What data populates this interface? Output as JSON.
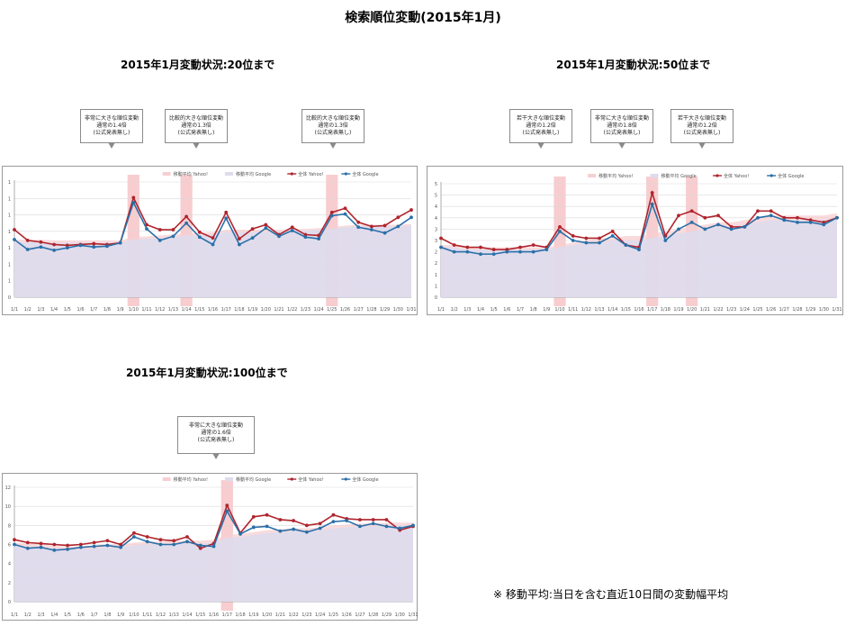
{
  "page": {
    "title": "検索順位変動(2015年1月)",
    "note": "※ 移動平均:当日を含む直近10日間の変動幅平均"
  },
  "legend": [
    "移動平均 Yahoo!",
    "移動平均 Google",
    "全体 Yahoo!",
    "全体 Google"
  ],
  "colors": {
    "yahoo": "#b0242c",
    "google": "#2a6fa8",
    "avg_yahoo": "#f7cfd2",
    "avg_google": "#dcdcee",
    "highlight": "#f6bcc0"
  },
  "chart_data": [
    {
      "type": "line",
      "title": "2015年1月変動状況:20位まで",
      "x": [
        "1/1",
        "1/2",
        "1/3",
        "1/4",
        "1/5",
        "1/6",
        "1/7",
        "1/8",
        "1/9",
        "1/10",
        "1/11",
        "1/12",
        "1/13",
        "1/14",
        "1/15",
        "1/16",
        "1/17",
        "1/18",
        "1/19",
        "1/20",
        "1/21",
        "1/22",
        "1/23",
        "1/24",
        "1/25",
        "1/26",
        "1/27",
        "1/28",
        "1/29",
        "1/30",
        "1/31"
      ],
      "ytick_labels": [
        "0",
        "1",
        "1",
        "1",
        "1",
        "1",
        "1",
        "1"
      ],
      "ylim": [
        0,
        14
      ],
      "highlight": [
        "1/10",
        "1/14",
        "1/25"
      ],
      "callouts": [
        {
          "lines": [
            "非常に大きな順位変動",
            "通常の1.4倍",
            "(公式発表無し)"
          ],
          "x": "1/10"
        },
        {
          "lines": [
            "比較的大きな順位変動",
            "通常の1.3倍",
            "(公式発表無し)"
          ],
          "x": "1/14"
        },
        {
          "lines": [
            "比較的大きな順位変動",
            "通常の1.3倍",
            "(公式発表無し)"
          ],
          "x": "1/25"
        }
      ],
      "series": [
        {
          "name": "移動平均 Yahoo!",
          "values": [
            7.0,
            7.0,
            7.0,
            6.9,
            6.9,
            6.9,
            6.9,
            6.9,
            6.9,
            7.3,
            7.4,
            7.5,
            7.6,
            7.8,
            7.8,
            7.9,
            8.2,
            8.2,
            8.2,
            8.2,
            8.2,
            8.3,
            8.3,
            8.4,
            8.5,
            8.7,
            8.8,
            8.8,
            8.8,
            8.8,
            8.9
          ]
        },
        {
          "name": "移動平均 Google",
          "values": [
            6.7,
            6.7,
            6.7,
            6.6,
            6.6,
            6.6,
            6.6,
            6.6,
            6.6,
            7.0,
            7.1,
            7.2,
            7.3,
            7.5,
            7.5,
            7.6,
            7.9,
            7.9,
            7.9,
            7.9,
            8.0,
            8.1,
            8.1,
            8.2,
            8.3,
            8.5,
            8.6,
            8.6,
            8.6,
            8.6,
            8.7
          ]
        },
        {
          "name": "全体 Yahoo!",
          "values": [
            8.2,
            6.9,
            6.7,
            6.4,
            6.3,
            6.4,
            6.5,
            6.4,
            6.6,
            12.1,
            8.8,
            8.2,
            8.2,
            9.8,
            7.9,
            7.2,
            10.3,
            7.1,
            8.3,
            8.8,
            7.6,
            8.5,
            7.6,
            7.5,
            10.3,
            10.8,
            9.1,
            8.6,
            8.7,
            9.7,
            10.6
          ]
        },
        {
          "name": "全体 Google",
          "values": [
            7.0,
            5.8,
            6.1,
            5.7,
            6.0,
            6.3,
            6.1,
            6.2,
            6.6,
            11.5,
            8.3,
            6.9,
            7.4,
            9.0,
            7.3,
            6.4,
            9.6,
            6.4,
            7.2,
            8.4,
            7.4,
            8.1,
            7.3,
            7.1,
            9.9,
            10.1,
            8.5,
            8.2,
            7.8,
            8.6,
            9.7
          ]
        }
      ]
    },
    {
      "type": "line",
      "title": "2015年1月変動状況:50位まで",
      "x": [
        "1/1",
        "1/2",
        "1/3",
        "1/4",
        "1/5",
        "1/6",
        "1/7",
        "1/8",
        "1/9",
        "1/10",
        "1/11",
        "1/12",
        "1/13",
        "1/14",
        "1/15",
        "1/16",
        "1/17",
        "1/18",
        "1/19",
        "1/20",
        "1/21",
        "1/22",
        "1/23",
        "1/24",
        "1/25",
        "1/26",
        "1/27",
        "1/28",
        "1/29",
        "1/30",
        "1/31"
      ],
      "ytick_labels": [
        "0",
        "1",
        "1",
        "2",
        "2",
        "3",
        "3",
        "4",
        "4",
        "5",
        "5"
      ],
      "ylim": [
        0,
        5
      ],
      "highlight": [
        "1/10",
        "1/17",
        "1/20"
      ],
      "callouts": [
        {
          "lines": [
            "若干大きな順位変動",
            "通常の1.2倍",
            "(公式発表無し)"
          ],
          "x": "1/10"
        },
        {
          "lines": [
            "非常に大きな順位変動",
            "通常の1.8倍",
            "(公式発表無し)"
          ],
          "x": "1/17"
        },
        {
          "lines": [
            "若干大きな順位変動",
            "通常の1.2倍",
            "(公式発表無し)"
          ],
          "x": "1/20"
        }
      ],
      "series": [
        {
          "name": "移動平均 Yahoo!",
          "values": [
            2.3,
            2.3,
            2.2,
            2.2,
            2.2,
            2.2,
            2.2,
            2.2,
            2.2,
            2.3,
            2.4,
            2.5,
            2.6,
            2.6,
            2.7,
            2.7,
            2.8,
            2.9,
            3.0,
            3.1,
            3.2,
            3.3,
            3.3,
            3.4,
            3.5,
            3.6,
            3.6,
            3.6,
            3.6,
            3.6,
            3.7
          ]
        },
        {
          "name": "移動平均 Google",
          "values": [
            2.2,
            2.2,
            2.1,
            2.1,
            2.1,
            2.1,
            2.1,
            2.1,
            2.1,
            2.2,
            2.3,
            2.4,
            2.4,
            2.5,
            2.5,
            2.5,
            2.6,
            2.7,
            2.8,
            2.9,
            3.0,
            3.1,
            3.1,
            3.2,
            3.3,
            3.4,
            3.4,
            3.4,
            3.4,
            3.4,
            3.5
          ]
        },
        {
          "name": "全体 Yahoo!",
          "values": [
            2.6,
            2.3,
            2.2,
            2.2,
            2.1,
            2.1,
            2.2,
            2.3,
            2.2,
            3.1,
            2.7,
            2.6,
            2.6,
            2.9,
            2.3,
            2.2,
            4.6,
            2.7,
            3.6,
            3.8,
            3.5,
            3.6,
            3.1,
            3.1,
            3.8,
            3.8,
            3.5,
            3.5,
            3.4,
            3.3,
            3.5
          ]
        },
        {
          "name": "全体 Google",
          "values": [
            2.2,
            2.0,
            2.0,
            1.9,
            1.9,
            2.0,
            2.0,
            2.0,
            2.1,
            2.9,
            2.5,
            2.4,
            2.4,
            2.7,
            2.3,
            2.1,
            4.1,
            2.5,
            3.0,
            3.3,
            3.0,
            3.2,
            3.0,
            3.1,
            3.5,
            3.6,
            3.4,
            3.3,
            3.3,
            3.2,
            3.5
          ]
        }
      ]
    },
    {
      "type": "line",
      "title": "2015年1月変動状況:100位まで",
      "x": [
        "1/1",
        "1/2",
        "1/3",
        "1/4",
        "1/5",
        "1/6",
        "1/7",
        "1/8",
        "1/9",
        "1/10",
        "1/11",
        "1/12",
        "1/13",
        "1/14",
        "1/15",
        "1/16",
        "1/17",
        "1/18",
        "1/19",
        "1/20",
        "1/21",
        "1/22",
        "1/23",
        "1/24",
        "1/25",
        "1/26",
        "1/27",
        "1/28",
        "1/29",
        "1/30",
        "1/31"
      ],
      "ytick_labels": [
        "0",
        "2",
        "4",
        "6",
        "8",
        "10",
        "12"
      ],
      "ylim": [
        0,
        12
      ],
      "highlight": [
        "1/17"
      ],
      "callouts": [
        {
          "lines": [
            "非常に大きな順位変動",
            "通常の1.6倍",
            "(公式発表無し)"
          ],
          "x": "1/17"
        }
      ],
      "series": [
        {
          "name": "移動平均 Yahoo!",
          "values": [
            6.2,
            6.1,
            6.0,
            5.9,
            5.8,
            5.8,
            5.9,
            6.0,
            6.0,
            6.2,
            6.3,
            6.3,
            6.4,
            6.4,
            6.4,
            6.5,
            7.0,
            7.1,
            7.3,
            7.5,
            7.6,
            7.7,
            7.7,
            7.8,
            8.0,
            8.1,
            8.2,
            8.2,
            8.3,
            8.3,
            8.3
          ]
        },
        {
          "name": "移動平均 Google",
          "values": [
            5.9,
            5.8,
            5.7,
            5.6,
            5.5,
            5.5,
            5.6,
            5.7,
            5.7,
            5.9,
            6.0,
            6.0,
            6.1,
            6.1,
            6.1,
            6.2,
            6.7,
            6.8,
            7.0,
            7.2,
            7.3,
            7.4,
            7.4,
            7.5,
            7.7,
            7.8,
            7.9,
            7.9,
            8.0,
            8.0,
            8.0
          ]
        },
        {
          "name": "全体 Yahoo!",
          "values": [
            6.5,
            6.2,
            6.1,
            6.0,
            5.9,
            6.0,
            6.2,
            6.4,
            6.0,
            7.2,
            6.8,
            6.5,
            6.4,
            6.8,
            5.6,
            6.1,
            10.1,
            7.2,
            8.9,
            9.1,
            8.6,
            8.5,
            8.0,
            8.2,
            9.1,
            8.7,
            8.6,
            8.6,
            8.6,
            7.5,
            7.9
          ]
        },
        {
          "name": "全体 Google",
          "values": [
            6.0,
            5.6,
            5.7,
            5.4,
            5.5,
            5.7,
            5.8,
            5.9,
            5.7,
            6.8,
            6.3,
            6.0,
            6.0,
            6.3,
            5.9,
            5.8,
            9.5,
            7.1,
            7.8,
            7.9,
            7.4,
            7.6,
            7.3,
            7.7,
            8.4,
            8.5,
            7.9,
            8.2,
            7.9,
            7.7,
            8.0
          ]
        }
      ]
    }
  ]
}
